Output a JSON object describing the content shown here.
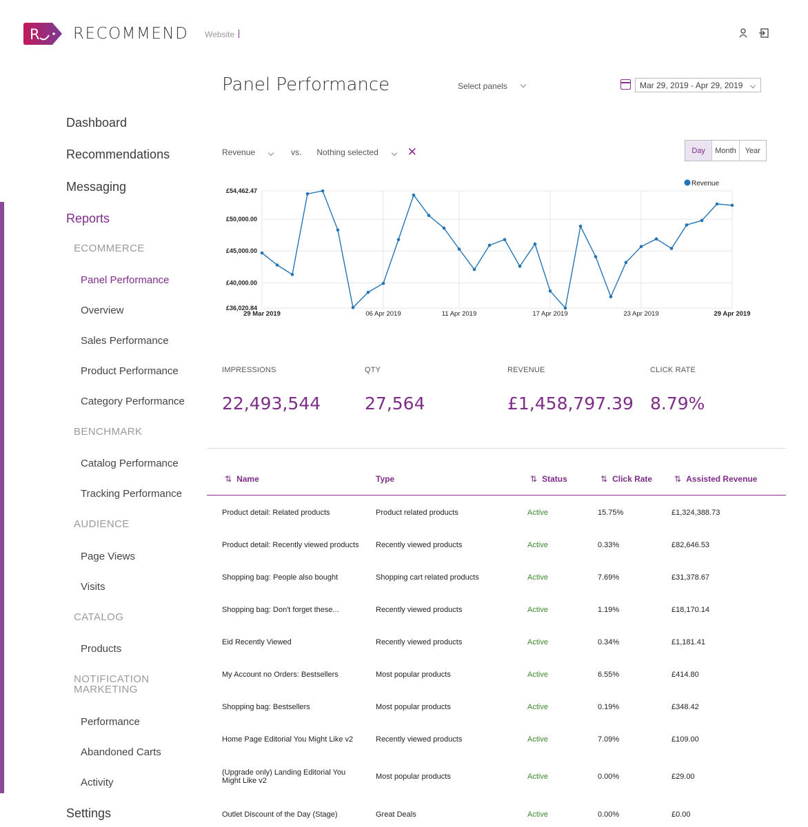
{
  "app": {
    "name": "RECOMMEND",
    "site": "Website",
    "brand_color": "#7e2d89"
  },
  "nav": {
    "main": [
      "Dashboard",
      "Recommendations",
      "Messaging",
      "Reports",
      "Settings"
    ],
    "sections": [
      "ECOMMERCE",
      "BENCHMARK",
      "AUDIENCE",
      "CATALOG",
      "NOTIFICATION MARKETING"
    ],
    "ecommerce": [
      "Panel Performance",
      "Overview",
      "Sales Performance",
      "Product Performance",
      "Category Performance"
    ],
    "benchmark": [
      "Catalog Performance",
      "Tracking Performance"
    ],
    "audience": [
      "Page Views",
      "Visits"
    ],
    "catalog": [
      "Products"
    ],
    "notification": [
      "Performance",
      "Abandoned Carts",
      "Activity"
    ]
  },
  "header": {
    "title": "Panel Performance",
    "select_panels": "Select panels",
    "date_range": "Mar 29, 2019 - Apr 29, 2019"
  },
  "controls": {
    "metric": "Revenue",
    "vs": "vs.",
    "compare": "Nothing selected",
    "periods": [
      "Day",
      "Month",
      "Year"
    ],
    "active_period": "Day"
  },
  "chart_data": {
    "type": "line",
    "series": [
      {
        "name": "Revenue",
        "color": "#2474b5",
        "values": [
          44700,
          42800,
          41300,
          54000,
          54462.47,
          48300,
          36100,
          38500,
          39900,
          46800,
          53800,
          50600,
          48600,
          45300,
          42100,
          45900,
          46800,
          42600,
          46100,
          38700,
          36020.84,
          48900,
          44100,
          37800,
          43200,
          45700,
          46900,
          45400,
          49100,
          49800,
          52400,
          52200
        ]
      }
    ],
    "x_labels": [
      "29 Mar 2019",
      "06 Apr 2019",
      "11 Apr 2019",
      "17 Apr 2019",
      "23 Apr 2019",
      "29 Apr 2019"
    ],
    "x_label_index": [
      0,
      8,
      13,
      19,
      25,
      31
    ],
    "y_labels": [
      "£54,462.47",
      "£50,000.00",
      "£45,000.00",
      "£40,000.00",
      "£36,020.84"
    ],
    "y_values": [
      54462.47,
      50000,
      45000,
      40000,
      36020.84
    ],
    "ylim": [
      36020.84,
      54462.47
    ],
    "legend": "top-right",
    "grid": true
  },
  "stats": [
    {
      "label": "IMPRESSIONS",
      "value": "22,493,544"
    },
    {
      "label": "QTY",
      "value": "27,564"
    },
    {
      "label": "REVENUE",
      "value": "£1,458,797.39"
    },
    {
      "label": "CLICK RATE",
      "value": "8.79%"
    }
  ],
  "table": {
    "columns": [
      "Name",
      "Type",
      "Status",
      "Click Rate",
      "Assisted Revenue"
    ],
    "rows": [
      [
        "Product detail: Related products",
        "Product related products",
        "Active",
        "15.75%",
        "£1,324,388.73"
      ],
      [
        "Product detail: Recently viewed products",
        "Recently viewed products",
        "Active",
        "0.33%",
        "£82,646.53"
      ],
      [
        "Shopping bag: People also bought",
        "Shopping cart related products",
        "Active",
        "7.69%",
        "£31,378.67"
      ],
      [
        "Shopping bag: Don't forget these...",
        "Recently viewed products",
        "Active",
        "1.19%",
        "£18,170.14"
      ],
      [
        "Eid Recently Viewed",
        "Recently viewed products",
        "Active",
        "0.34%",
        "£1,181.41"
      ],
      [
        "My Account no Orders: Bestsellers",
        "Most popular products",
        "Active",
        "6.55%",
        "£414.80"
      ],
      [
        "Shopping bag: Bestsellers",
        "Most popular products",
        "Active",
        "0.19%",
        "£348.42"
      ],
      [
        "Home Page Editorial You Might Like v2",
        "Recently viewed products",
        "Active",
        "7.09%",
        "£109.00"
      ],
      [
        "(Upgrade only) Landing Editorial You Might Like v2",
        "Most popular products",
        "Active",
        "0.00%",
        "£29.00"
      ],
      [
        "Outlet Discount of the Day (Stage)",
        "Great Deals",
        "Active",
        "0.00%",
        "£0.00"
      ]
    ]
  }
}
